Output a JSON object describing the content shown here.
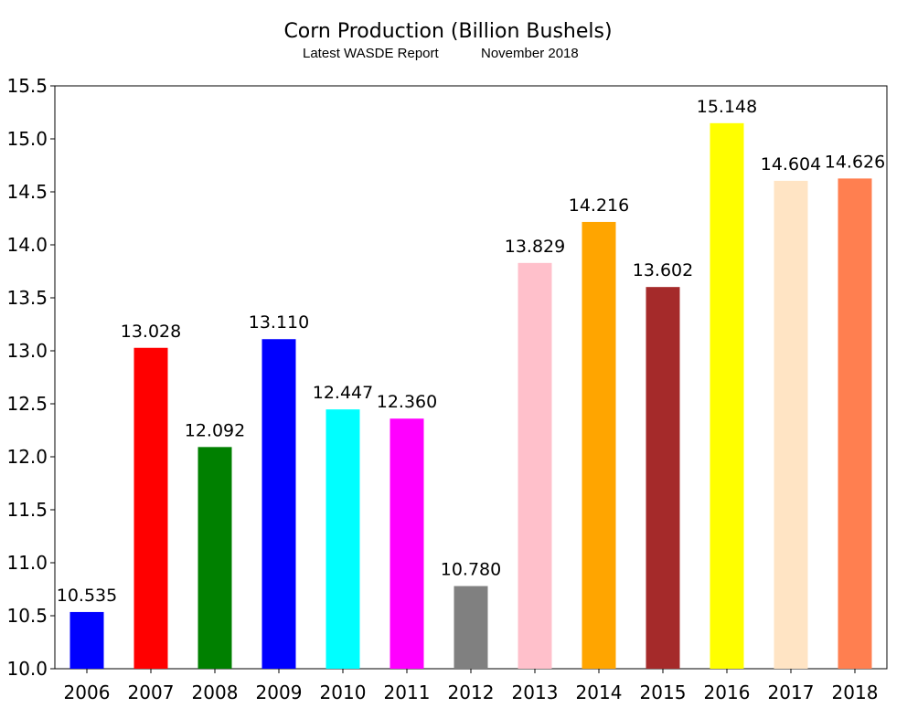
{
  "chart_data": {
    "type": "bar",
    "title": "Corn Production (Billion Bushels)",
    "subtitle_left": "Latest WASDE Report",
    "subtitle_right": "November 2018",
    "xlabel": "",
    "ylabel": "",
    "ylim": [
      10.0,
      15.5
    ],
    "yticks": [
      "10.0",
      "10.5",
      "11.0",
      "11.5",
      "12.0",
      "12.5",
      "13.0",
      "13.5",
      "14.0",
      "14.5",
      "15.0",
      "15.5"
    ],
    "categories": [
      "2006",
      "2007",
      "2008",
      "2009",
      "2010",
      "2011",
      "2012",
      "2013",
      "2014",
      "2015",
      "2016",
      "2017",
      "2018"
    ],
    "values": [
      10.535,
      13.028,
      12.092,
      13.11,
      12.447,
      12.36,
      10.78,
      13.829,
      14.216,
      13.602,
      15.148,
      14.604,
      14.626
    ],
    "value_labels": [
      "10.535",
      "13.028",
      "12.092",
      "13.110",
      "12.447",
      "12.360",
      "10.780",
      "13.829",
      "14.216",
      "13.602",
      "15.148",
      "14.604",
      "14.626"
    ],
    "colors": [
      "#0000ff",
      "#ff0000",
      "#008000",
      "#0000ff",
      "#00ffff",
      "#ff00ff",
      "#808080",
      "#ffc0cb",
      "#ffa500",
      "#a52a2a",
      "#ffff00",
      "#ffe4c4",
      "#ff7f50"
    ],
    "grid": false,
    "legend": "none"
  }
}
